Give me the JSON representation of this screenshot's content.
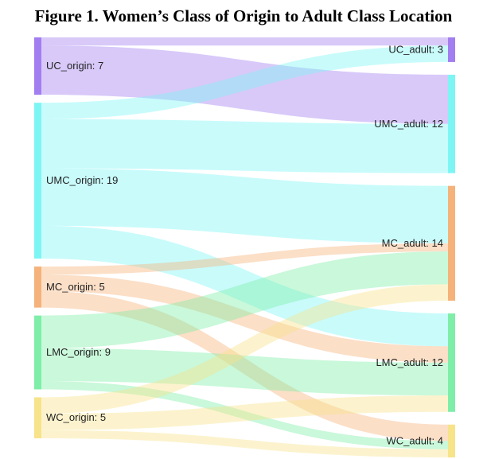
{
  "title": "Figure 1. Women’s Class of Origin  to Adult Class Location",
  "chart_data": {
    "type": "sankey",
    "sources": [
      {
        "id": "UC_origin",
        "label": "UC_origin: 7",
        "value": 7,
        "color": "#a27ef0"
      },
      {
        "id": "UMC_origin",
        "label": "UMC_origin: 19",
        "value": 19,
        "color": "#7ef5f5"
      },
      {
        "id": "MC_origin",
        "label": "MC_origin: 5",
        "value": 5,
        "color": "#f5b27a"
      },
      {
        "id": "LMC_origin",
        "label": "LMC_origin: 9",
        "value": 9,
        "color": "#7eeea8"
      },
      {
        "id": "WC_origin",
        "label": "WC_origin: 5",
        "value": 5,
        "color": "#f7e38a"
      }
    ],
    "targets": [
      {
        "id": "UC_adult",
        "label": "UC_adult: 3",
        "value": 3,
        "color": "#a27ef0"
      },
      {
        "id": "UMC_adult",
        "label": "UMC_adult: 12",
        "value": 12,
        "color": "#7ef5f5"
      },
      {
        "id": "MC_adult",
        "label": "MC_adult: 14",
        "value": 14,
        "color": "#f5b27a"
      },
      {
        "id": "LMC_adult",
        "label": "LMC_adult: 12",
        "value": 12,
        "color": "#7eeea8"
      },
      {
        "id": "WC_adult",
        "label": "WC_adult: 4",
        "value": 4,
        "color": "#f7e38a"
      }
    ],
    "links": [
      {
        "source": "UC_origin",
        "target": "UC_adult",
        "value": 1
      },
      {
        "source": "UC_origin",
        "target": "UMC_adult",
        "value": 6
      },
      {
        "source": "UMC_origin",
        "target": "UC_adult",
        "value": 2
      },
      {
        "source": "UMC_origin",
        "target": "UMC_adult",
        "value": 6
      },
      {
        "source": "UMC_origin",
        "target": "MC_adult",
        "value": 7
      },
      {
        "source": "UMC_origin",
        "target": "LMC_adult",
        "value": 4
      },
      {
        "source": "MC_origin",
        "target": "MC_adult",
        "value": 1
      },
      {
        "source": "MC_origin",
        "target": "LMC_adult",
        "value": 2
      },
      {
        "source": "MC_origin",
        "target": "WC_adult",
        "value": 2
      },
      {
        "source": "LMC_origin",
        "target": "MC_adult",
        "value": 4
      },
      {
        "source": "LMC_origin",
        "target": "LMC_adult",
        "value": 4
      },
      {
        "source": "LMC_origin",
        "target": "WC_adult",
        "value": 1
      },
      {
        "source": "WC_origin",
        "target": "MC_adult",
        "value": 2
      },
      {
        "source": "WC_origin",
        "target": "LMC_adult",
        "value": 2
      },
      {
        "source": "WC_origin",
        "target": "WC_adult",
        "value": 1
      }
    ]
  }
}
